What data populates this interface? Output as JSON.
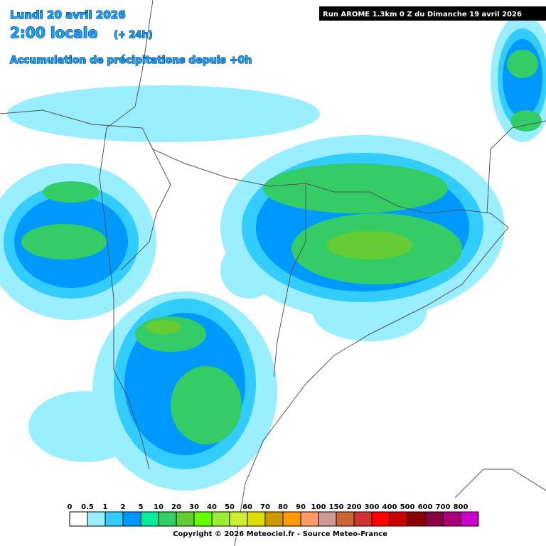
{
  "header": {
    "date": "Lundi 20 avril 2026",
    "time": "2:00 locale",
    "offset": "(+ 24h)",
    "subtitle": "Accumulation de précipitations depuis +0h",
    "run": "Run AROME 1.3km 0 Z du Dimanche 19 avril 2026"
  },
  "legend": {
    "items": [
      {
        "label": "0",
        "color": "#ffffff"
      },
      {
        "label": "0.5",
        "color": "#99eeff"
      },
      {
        "label": "1",
        "color": "#33ccff"
      },
      {
        "label": "2",
        "color": "#0099ff"
      },
      {
        "label": "5",
        "color": "#00ee99"
      },
      {
        "label": "10",
        "color": "#33cc66"
      },
      {
        "label": "20",
        "color": "#66cc33"
      },
      {
        "label": "30",
        "color": "#66ff00"
      },
      {
        "label": "40",
        "color": "#99ee33"
      },
      {
        "label": "50",
        "color": "#ccee33"
      },
      {
        "label": "60",
        "color": "#dddd00"
      },
      {
        "label": "70",
        "color": "#cc9900"
      },
      {
        "label": "80",
        "color": "#ff9900"
      },
      {
        "label": "90",
        "color": "#ff9966"
      },
      {
        "label": "100",
        "color": "#cc9999"
      },
      {
        "label": "150",
        "color": "#cc6633"
      },
      {
        "label": "200",
        "color": "#cc3333"
      },
      {
        "label": "300",
        "color": "#ff0000"
      },
      {
        "label": "400",
        "color": "#cc0000"
      },
      {
        "label": "500",
        "color": "#880000"
      },
      {
        "label": "600",
        "color": "#880044"
      },
      {
        "label": "700",
        "color": "#aa0077"
      },
      {
        "label": "800",
        "color": "#cc00cc"
      }
    ]
  },
  "footer": {
    "copyright": "Copyright © 2026 Meteociel.fr - Source Meteo-France"
  }
}
